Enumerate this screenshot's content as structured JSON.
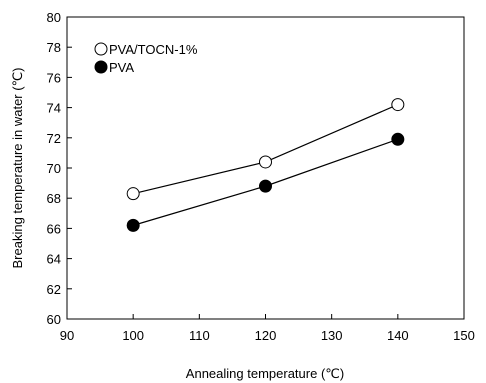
{
  "chart_data": {
    "type": "line",
    "xlabel": "Annealing temperature (℃)",
    "ylabel": "Breaking temperature in water (℃)",
    "xlim": [
      90,
      150
    ],
    "ylim": [
      60,
      80
    ],
    "x_ticks": [
      "90",
      "100",
      "110",
      "120",
      "130",
      "140",
      "150"
    ],
    "y_ticks": [
      "60",
      "62",
      "64",
      "66",
      "68",
      "70",
      "72",
      "74",
      "76",
      "78",
      "80"
    ],
    "grid": false,
    "legend_position": "top-left",
    "series": [
      {
        "name": "PVA/TOCN-1%",
        "marker": "open-circle",
        "x": [
          100,
          120,
          140
        ],
        "y": [
          68.3,
          70.4,
          74.2
        ]
      },
      {
        "name": "PVA",
        "marker": "filled-circle",
        "x": [
          100,
          120,
          140
        ],
        "y": [
          66.2,
          68.8,
          71.9
        ]
      }
    ]
  }
}
